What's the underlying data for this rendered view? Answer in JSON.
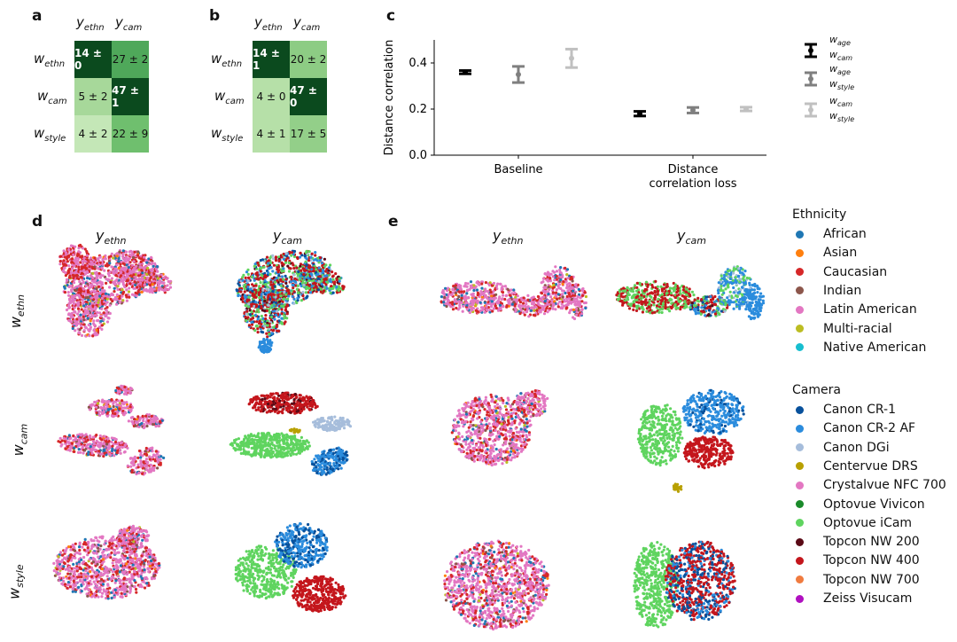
{
  "panels": {
    "a": "a",
    "b": "b",
    "c": "c",
    "d": "d",
    "e": "e"
  },
  "labels": {
    "y": "y",
    "w": "w",
    "ethn": "ethn",
    "cam": "cam",
    "style": "style",
    "age": "age"
  },
  "matrix_a": {
    "cells": [
      [
        "14 ± 0",
        "27 ± 2"
      ],
      [
        "5 ± 2",
        "47 ± 1"
      ],
      [
        "4 ± 2",
        "22 ± 9"
      ]
    ],
    "shades": [
      [
        "#0b4a1e",
        "#4fa85a"
      ],
      [
        "#a7d89a",
        "#0b4a1e"
      ],
      [
        "#c4e7b7",
        "#6fbf6e"
      ]
    ],
    "text_colors": [
      [
        "#ffffff",
        "#111111"
      ],
      [
        "#111111",
        "#ffffff"
      ],
      [
        "#111111",
        "#111111"
      ]
    ]
  },
  "matrix_b": {
    "cells": [
      [
        "14 ± 1",
        "20 ± 2"
      ],
      [
        "4 ± 0",
        "47 ± 0"
      ],
      [
        "4 ± 1",
        "17 ± 5"
      ]
    ],
    "shades": [
      [
        "#0b4a1e",
        "#8dcc84"
      ],
      [
        "#b6e0a8",
        "#0b4a1e"
      ],
      [
        "#b6e0a8",
        "#93cf89"
      ]
    ],
    "text_colors": [
      [
        "#ffffff",
        "#111111"
      ],
      [
        "#111111",
        "#ffffff"
      ],
      [
        "#111111",
        "#111111"
      ]
    ]
  },
  "chart_data": {
    "type": "scatter",
    "title": "",
    "xlabel": "",
    "ylabel": "Distance correlation",
    "categories": [
      "Baseline",
      "Distance correlation loss"
    ],
    "category_lines": [
      [
        "Baseline"
      ],
      [
        "Distance",
        "correlation loss"
      ]
    ],
    "ylim": [
      0.0,
      0.5
    ],
    "yticks": [
      0.0,
      0.2,
      0.4
    ],
    "ytick_labels": [
      "0.0",
      "0.2",
      "0.4"
    ],
    "series": [
      {
        "name": "w_age / w_cam",
        "color": "#000000",
        "values": [
          0.36,
          0.18
        ],
        "err": [
          0.007,
          0.01
        ]
      },
      {
        "name": "w_age / w_style",
        "color": "#7f7f7f",
        "values": [
          0.35,
          0.195
        ],
        "err": [
          0.035,
          0.012
        ]
      },
      {
        "name": "w_cam / w_style",
        "color": "#c0c0c0",
        "values": [
          0.42,
          0.2
        ],
        "err": [
          0.04,
          0.008
        ]
      }
    ]
  },
  "legend_ethnicity": {
    "title": "Ethnicity",
    "items": [
      {
        "label": "African",
        "color": "#1f77b4"
      },
      {
        "label": "Asian",
        "color": "#ff7f0e"
      },
      {
        "label": "Caucasian",
        "color": "#d62728"
      },
      {
        "label": "Indian",
        "color": "#8c564b"
      },
      {
        "label": "Latin American",
        "color": "#e377c2"
      },
      {
        "label": "Multi-racial",
        "color": "#bcbd22"
      },
      {
        "label": "Native American",
        "color": "#17becf"
      }
    ]
  },
  "legend_camera": {
    "title": "Camera",
    "items": [
      {
        "label": "Canon CR-1",
        "color": "#08519c"
      },
      {
        "label": "Canon CR-2 AF",
        "color": "#2b8cdd"
      },
      {
        "label": "Canon DGi",
        "color": "#a6bddb"
      },
      {
        "label": "Centervue DRS",
        "color": "#b8a000"
      },
      {
        "label": "Crystalvue NFC 700",
        "color": "#e377c2"
      },
      {
        "label": "Optovue Vivicon",
        "color": "#1a8a2a"
      },
      {
        "label": "Optovue iCam",
        "color": "#5fd45f"
      },
      {
        "label": "Topcon NW 200",
        "color": "#5a0a16"
      },
      {
        "label": "Topcon NW 400",
        "color": "#c4161c"
      },
      {
        "label": "Topcon NW 700",
        "color": "#f07b3f"
      },
      {
        "label": "Zeiss Visucam",
        "color": "#b010c0"
      }
    ]
  }
}
